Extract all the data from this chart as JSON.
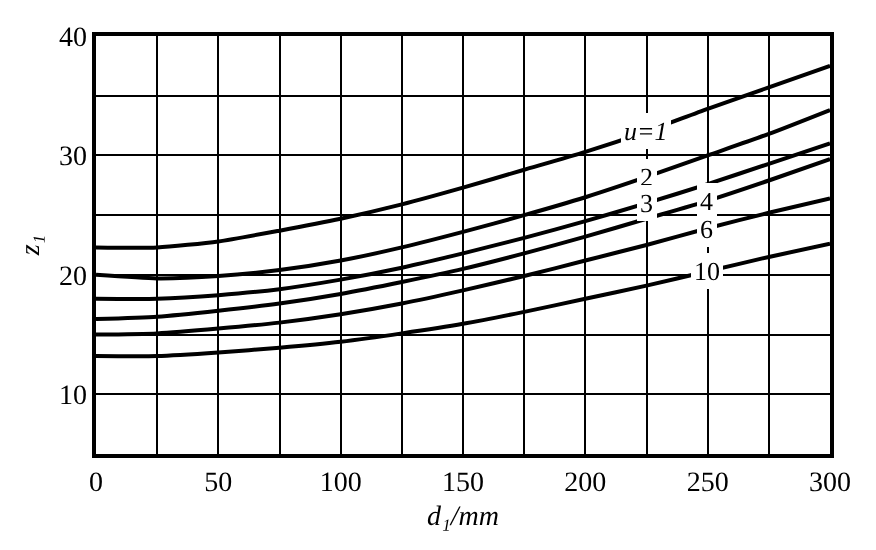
{
  "chart_data": {
    "type": "line",
    "xlabel": "d₁/mm",
    "ylabel": "z₁",
    "x": [
      0,
      25,
      50,
      75,
      100,
      125,
      150,
      175,
      200,
      225,
      250,
      275,
      300
    ],
    "series": [
      {
        "name": "u=1",
        "color": "#000000",
        "values": [
          22.3,
          22.3,
          22.8,
          23.7,
          24.7,
          25.9,
          27.3,
          28.8,
          30.3,
          32.0,
          33.9,
          35.7,
          37.5
        ]
      },
      {
        "name": "2",
        "color": "#000000",
        "values": [
          20.0,
          19.7,
          19.9,
          20.4,
          21.2,
          22.3,
          23.6,
          25.0,
          26.5,
          28.2,
          30.0,
          31.8,
          33.8
        ]
      },
      {
        "name": "3",
        "color": "#000000",
        "values": [
          18.0,
          18.0,
          18.3,
          18.8,
          19.6,
          20.6,
          21.8,
          23.1,
          24.5,
          26.0,
          27.6,
          29.3,
          31.0
        ]
      },
      {
        "name": "4",
        "color": "#000000",
        "values": [
          16.3,
          16.5,
          17.0,
          17.6,
          18.4,
          19.4,
          20.5,
          21.8,
          23.2,
          24.7,
          26.2,
          27.9,
          29.7
        ]
      },
      {
        "name": "6",
        "color": "#000000",
        "values": [
          15.0,
          15.1,
          15.5,
          16.0,
          16.7,
          17.6,
          18.7,
          19.9,
          21.2,
          22.5,
          23.9,
          25.2,
          26.4
        ]
      },
      {
        "name": "10",
        "color": "#000000",
        "values": [
          13.2,
          13.2,
          13.5,
          13.9,
          14.4,
          15.1,
          15.9,
          16.9,
          18.0,
          19.1,
          20.3,
          21.5,
          22.6
        ]
      }
    ],
    "xlim": [
      0,
      300
    ],
    "ylim": [
      5,
      40
    ],
    "xticks": [
      0,
      {
        "value": 25,
        "label": null
      },
      50,
      {
        "value": 75,
        "label": null
      },
      100,
      {
        "value": 125,
        "label": null
      },
      150,
      {
        "value": 175,
        "label": null
      },
      200,
      {
        "value": 225,
        "label": null
      },
      250,
      {
        "value": 275,
        "label": null
      },
      300
    ],
    "yticks": [
      {
        "value": 5,
        "label": null
      },
      10,
      {
        "value": 15,
        "label": null
      },
      20,
      {
        "value": 25,
        "label": null
      },
      30,
      {
        "value": 35,
        "label": null
      },
      40
    ],
    "grid": true,
    "legend": false,
    "marker": "none",
    "line_style": "solid"
  }
}
